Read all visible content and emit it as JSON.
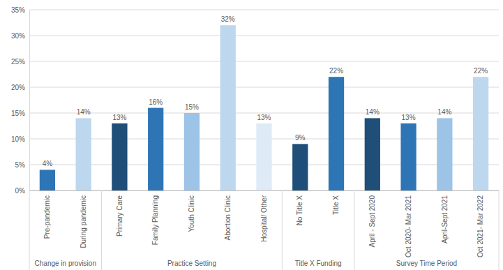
{
  "chart_data": {
    "type": "bar",
    "categories": [
      "Pre-pandemic",
      "During pandemic",
      "Primary Care",
      "Family Planning",
      "Youth Clinic",
      "Abortion Clinic",
      "Hospital/ Other",
      "No Title X",
      "Title X",
      "April - Sept 2020",
      "Oct 2020- Mar 2021",
      "April-Sept 2021",
      "Oct 2021- Mar 2022"
    ],
    "groups": [
      "Change in provision",
      "Change in provision",
      "Practice Setting",
      "Practice Setting",
      "Practice Setting",
      "Practice Setting",
      "Practice Setting",
      "Title X Funding",
      "Title X Funding",
      "Survey Time Period",
      "Survey Time Period",
      "Survey Time Period",
      "Survey Time Period"
    ],
    "values": [
      4,
      14,
      13,
      16,
      15,
      32,
      13,
      9,
      22,
      14,
      13,
      14,
      22
    ],
    "value_labels": [
      "4%",
      "14%",
      "13%",
      "16%",
      "15%",
      "32%",
      "13%",
      "9%",
      "22%",
      "14%",
      "13%",
      "14%",
      "22%"
    ],
    "colors": [
      "#2e75b6",
      "#bdd7ee",
      "#1f4e79",
      "#2e75b6",
      "#9dc3e6",
      "#bdd7ee",
      "#deebf7",
      "#1f4e79",
      "#2e75b6",
      "#1f4e79",
      "#2e75b6",
      "#9dc3e6",
      "#bdd7ee"
    ],
    "ylim": [
      0,
      35
    ],
    "yticks": [
      {
        "value": 0,
        "label": "0%"
      },
      {
        "value": 5,
        "label": "5%"
      },
      {
        "value": 10,
        "label": "10%"
      },
      {
        "value": 15,
        "label": "15%"
      },
      {
        "value": 20,
        "label": "20%"
      },
      {
        "value": 25,
        "label": "25%"
      },
      {
        "value": 30,
        "label": "30%"
      },
      {
        "value": 35,
        "label": "35%"
      }
    ],
    "grid": true,
    "data_labels": true
  }
}
